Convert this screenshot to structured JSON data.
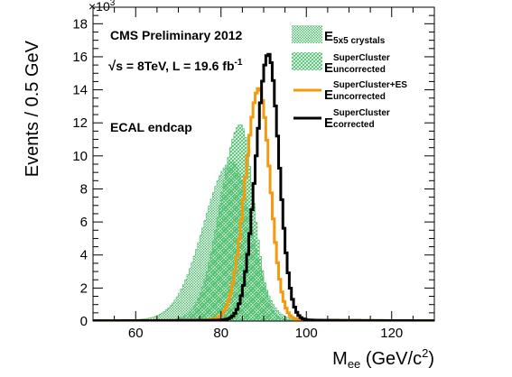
{
  "chart_data": {
    "type": "histogram",
    "title": "",
    "ylabel": "Events / 0.5 GeV",
    "xlabel_main": "M",
    "xlabel_sub": "ee",
    "xlabel_units": "(GeV/c",
    "xlabel_sup": "2",
    "xlabel_close": ")",
    "y_multiplier_base": "×10",
    "y_multiplier_exp": "3",
    "xlim": [
      50,
      130
    ],
    "ylim": [
      0,
      19000
    ],
    "x_ticks": [
      60,
      80,
      100,
      120
    ],
    "x_tick_labels": [
      "60",
      "80",
      "100",
      "120"
    ],
    "y_ticks": [
      0,
      2000,
      4000,
      6000,
      8000,
      10000,
      12000,
      14000,
      16000,
      18000
    ],
    "y_tick_labels": [
      "0",
      "2",
      "4",
      "6",
      "8",
      "10",
      "12",
      "14",
      "16",
      "18"
    ],
    "annotations": {
      "cms": "CMS Preliminary 2012",
      "lumi_sqrt": "√",
      "lumi_text": "s = 8TeV, L = 19.6 fb",
      "lumi_sup": "-1",
      "region": "ECAL endcap"
    },
    "legend_position": "top-right",
    "legend": [
      {
        "main": "E",
        "sub": "5x5 crystals",
        "sup": ""
      },
      {
        "main": "E",
        "sub": "uncorrected",
        "sup": "SuperCluster"
      },
      {
        "main": "E",
        "sub": "uncorrected",
        "sup": "SuperCluster+ES"
      },
      {
        "main": "E",
        "sub": "corrected",
        "sup": "SuperCluster"
      }
    ],
    "series": [
      {
        "name": "E5x5 crystals",
        "color": "#4fbf6f",
        "style": "dotted-fill",
        "mean": 82.5,
        "sigma_left": 6.5,
        "sigma_right": 4.5,
        "peak": 9500,
        "tail_amp": 120,
        "tail_slope": 35
      },
      {
        "name": "E SuperCluster uncorrected",
        "color": "#4fbf6f",
        "style": "hatched-fill",
        "mean": 84.6,
        "sigma_left": 4.7,
        "sigma_right": 3.1,
        "peak": 11800,
        "tail_amp": 100,
        "tail_slope": 30
      },
      {
        "name": "E SuperCluster+ES uncorrected",
        "color": "#f59a0c",
        "style": "line",
        "mean": 88.9,
        "sigma_left": 3.2,
        "sigma_right": 2.6,
        "peak": 14000,
        "tail_amp": 90,
        "tail_slope": 30
      },
      {
        "name": "E SuperCluster corrected",
        "color": "#000000",
        "style": "line",
        "mean": 91.1,
        "sigma_left": 2.9,
        "sigma_right": 2.5,
        "peak": 16100,
        "tail_amp": 80,
        "tail_slope": 28
      }
    ],
    "bin_width": 0.5
  }
}
